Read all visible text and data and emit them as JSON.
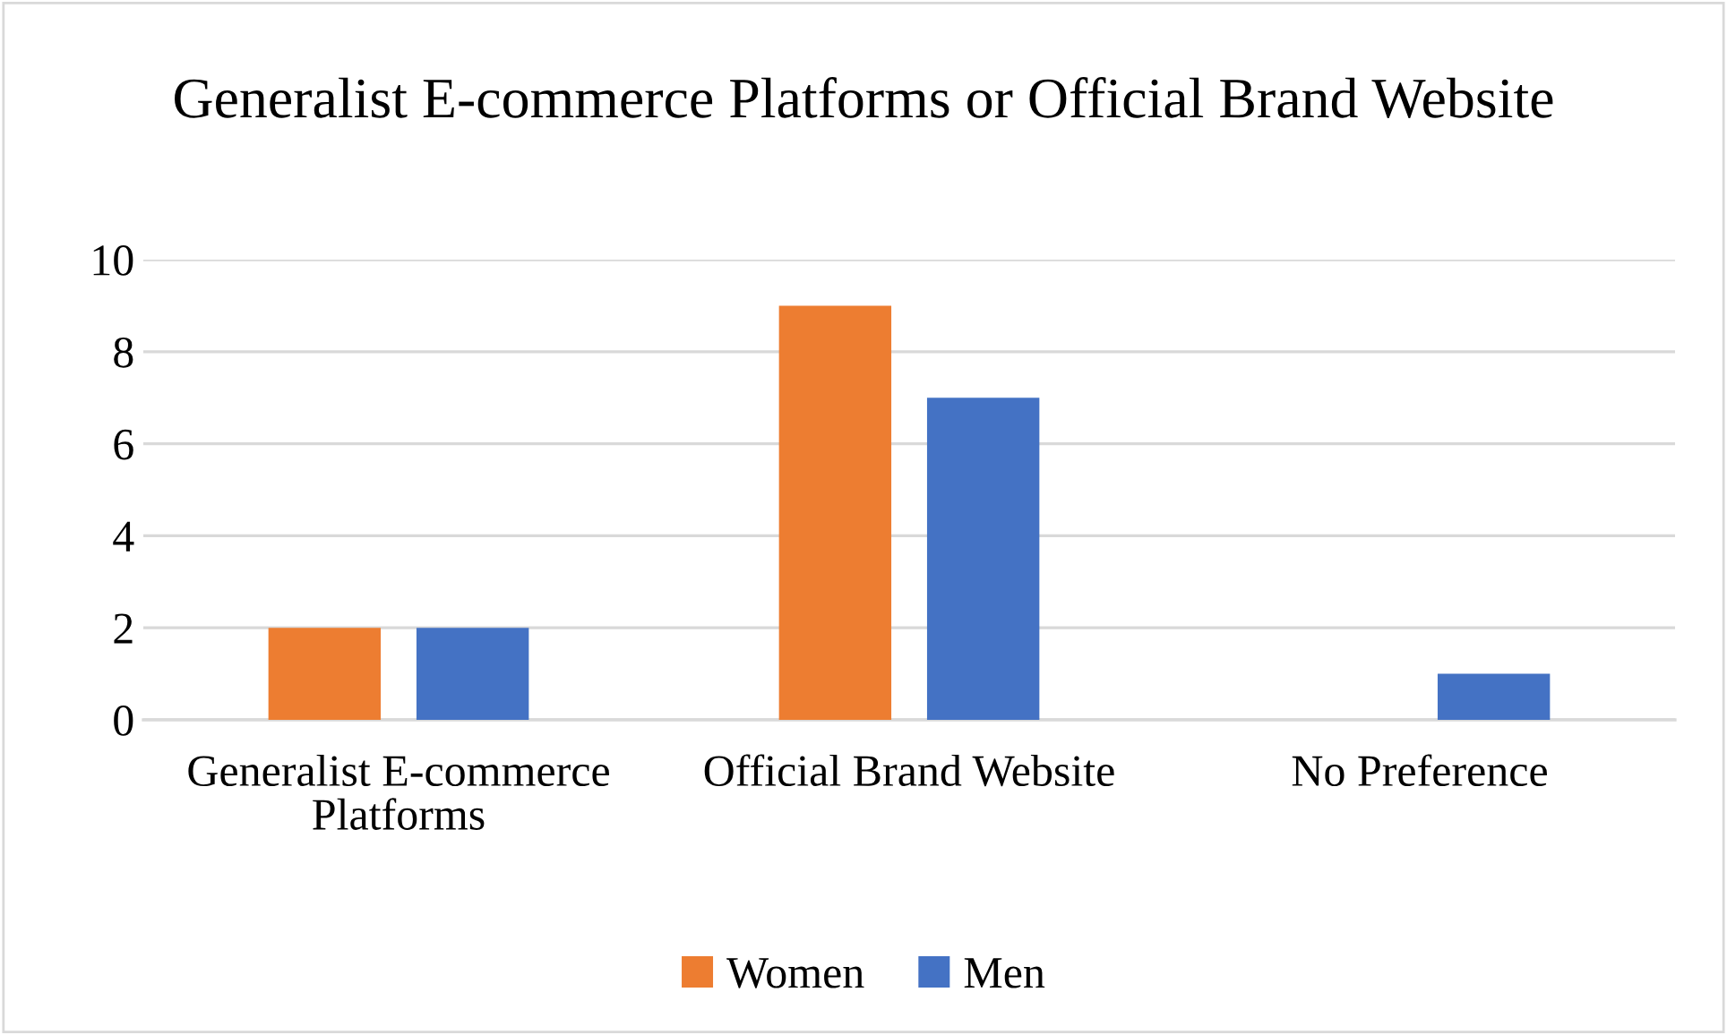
{
  "chart_data": {
    "type": "bar",
    "title": "Generalist E-commerce Platforms or Official Brand Website",
    "categories": [
      "Generalist E-commerce Platforms",
      "Official Brand Website",
      "No Preference"
    ],
    "series": [
      {
        "name": "Women",
        "color": "#ed7d31",
        "values": [
          2,
          9,
          0
        ]
      },
      {
        "name": "Men",
        "color": "#4472c4",
        "values": [
          2,
          7,
          1
        ]
      }
    ],
    "ylim": [
      0,
      10
    ],
    "yticks": [
      0,
      2,
      4,
      6,
      8,
      10
    ],
    "grid": "y",
    "legend": "bottom"
  }
}
